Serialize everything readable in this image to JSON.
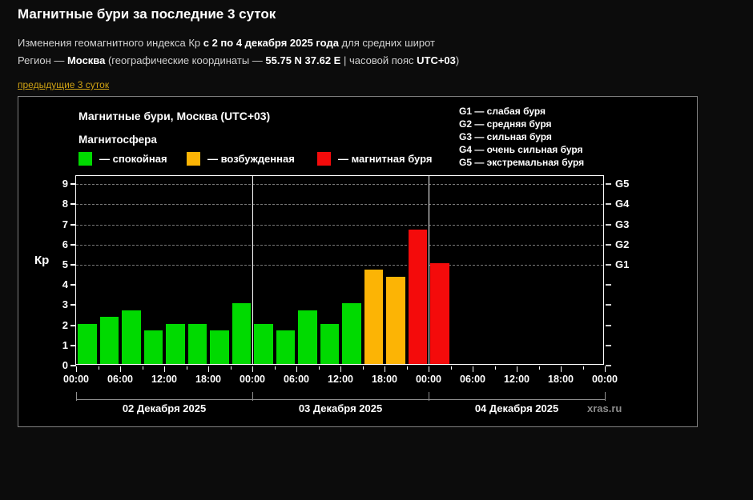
{
  "page": {
    "title": "Магнитные бури за последние 3 суток"
  },
  "header": {
    "subtitle": {
      "p1": "Изменения геомагнитного индекса Кр ",
      "b1": "с 2 по 4 декабря 2025 года",
      "p2": " для средних широт"
    },
    "region": {
      "p1": "Регион — ",
      "b1": "Москва",
      "p2": " (географические координаты — ",
      "b2": "55.75 N 37.62 E",
      "p3": " | часовой пояс ",
      "b3": "UTC+03",
      "p4": ")"
    },
    "prev_link": "предыдущие 3 суток"
  },
  "chart": {
    "title": "Магнитные бури, Москва (UTC+03)",
    "subtitle": "Магнитосфера",
    "legend": [
      {
        "label": "— спокойная",
        "color": "#00da00"
      },
      {
        "label": "— возбужденная",
        "color": "#fcb405"
      },
      {
        "label": "— магнитная буря",
        "color": "#f40b0b"
      }
    ],
    "g_legend": [
      "G1 — слабая буря",
      "G2 — средняя буря",
      "G3 — сильная буря",
      "G4 — очень сильная буря",
      "G5 — экстремальная буря"
    ],
    "watermark": "xras.ru"
  },
  "chart_data": {
    "type": "bar",
    "title": "Магнитные бури, Москва (UTC+03)",
    "xlabel": "",
    "ylabel": "Кр",
    "ylim": [
      0,
      9.4
    ],
    "yticks": [
      0,
      1,
      2,
      3,
      4,
      5,
      6,
      7,
      8,
      9
    ],
    "grid_levels": [
      5,
      6,
      7,
      8,
      9
    ],
    "grid": "dashed horizontal at G-storm levels only",
    "bar_hours": 3,
    "g_levels": [
      {
        "kp": 5,
        "g": "G1"
      },
      {
        "kp": 6,
        "g": "G2"
      },
      {
        "kp": 7,
        "g": "G3"
      },
      {
        "kp": 8,
        "g": "G4"
      },
      {
        "kp": 9,
        "g": "G5"
      }
    ],
    "x_hour_labels": [
      "00:00",
      "06:00",
      "12:00",
      "18:00",
      "00:00",
      "06:00",
      "12:00",
      "18:00",
      "00:00",
      "06:00",
      "12:00",
      "18:00",
      "00:00"
    ],
    "days": [
      {
        "date": "02 Декабря 2025",
        "values": [
          2.0,
          2.33,
          2.67,
          1.67,
          2.0,
          2.0,
          1.67,
          3.0
        ]
      },
      {
        "date": "03 Декабря 2025",
        "values": [
          2.0,
          1.67,
          2.67,
          2.0,
          3.0,
          4.67,
          4.33,
          6.67
        ]
      },
      {
        "date": "04 Декабря 2025",
        "values": [
          5.0
        ]
      }
    ],
    "colors": {
      "quiet": "#00da00",
      "active": "#fcb405",
      "storm": "#f40b0b"
    },
    "color_thresholds": {
      "active_min": 4,
      "storm_min": 5
    }
  }
}
